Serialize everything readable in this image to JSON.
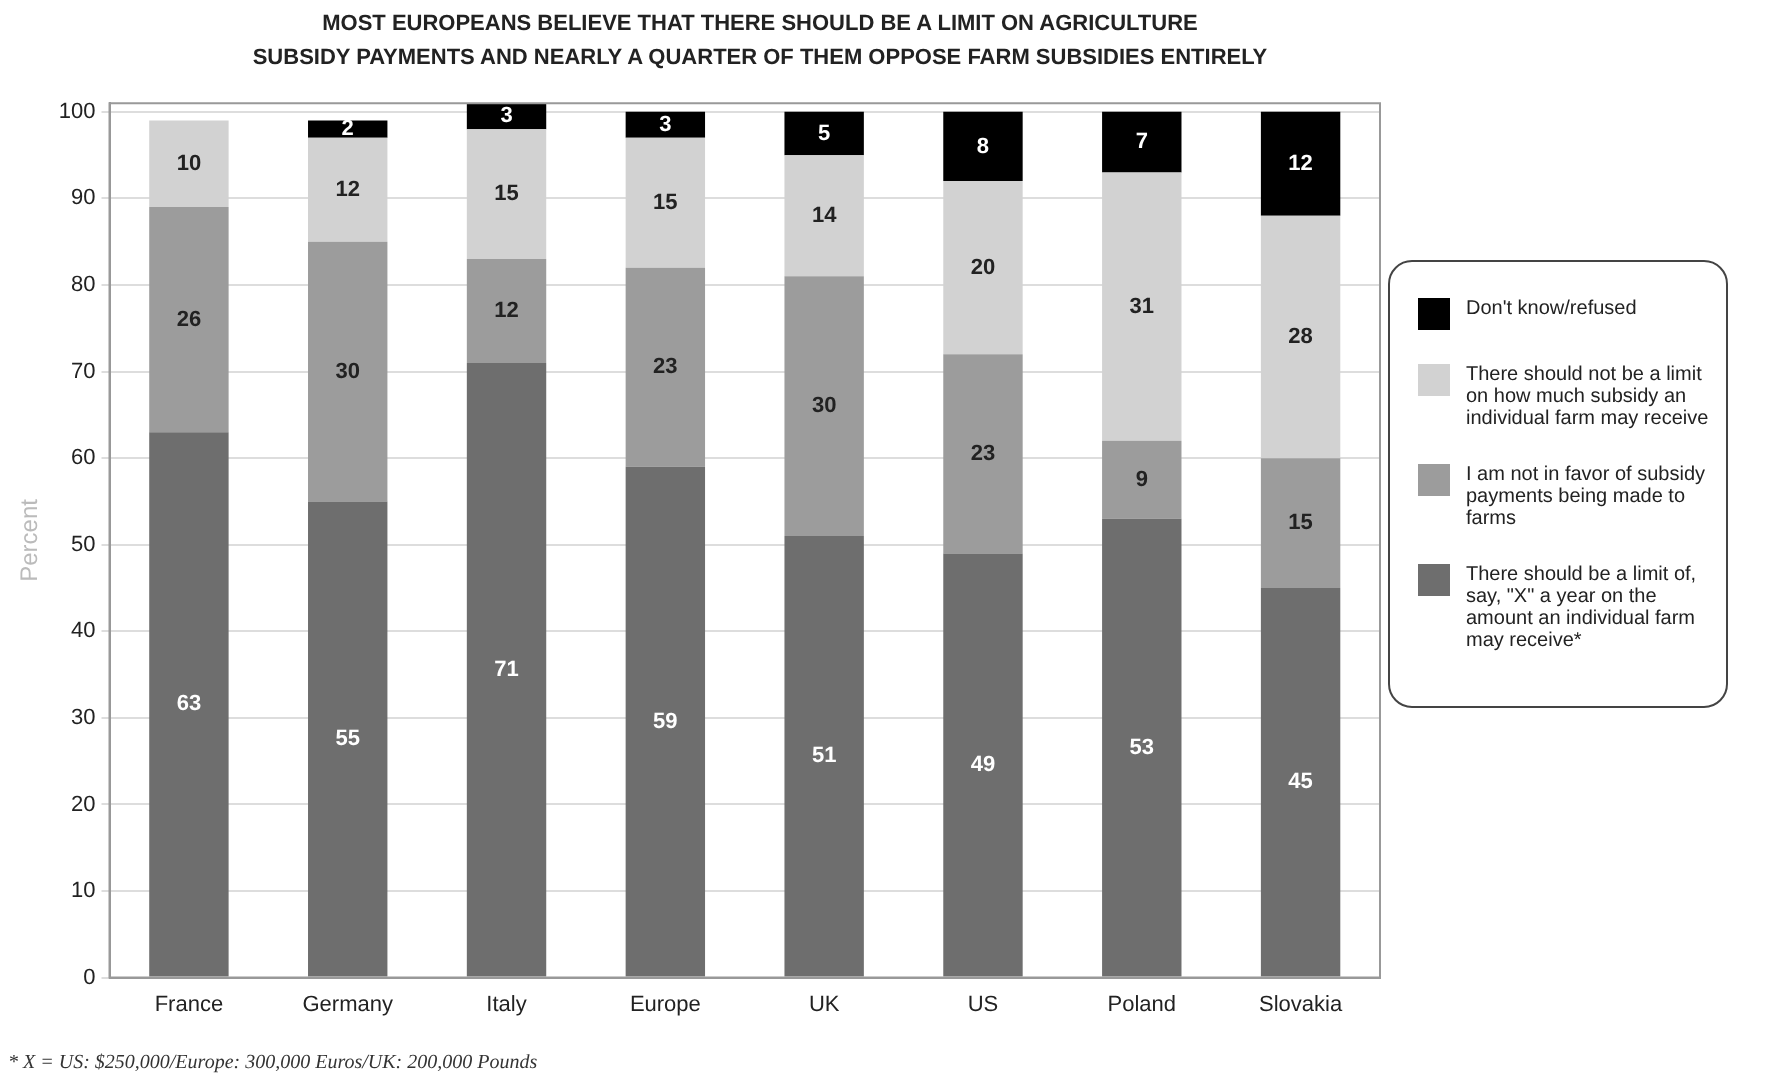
{
  "chart_data": {
    "type": "bar",
    "stacked": true,
    "title": "MOST EUROPEANS BELIEVE THAT THERE SHOULD BE A LIMIT ON AGRICULTURE\nSUBSIDY PAYMENTS AND NEARLY A QUARTER OF THEM OPPOSE FARM SUBSIDIES ENTIRELY",
    "ylabel": "Percent",
    "categories": [
      "France",
      "Germany",
      "Italy",
      "Europe",
      "UK",
      "US",
      "Poland",
      "Slovakia"
    ],
    "series": [
      {
        "name": "There should be a limit of, say, \"X\" a year on the amount an individual farm may receive*",
        "color": "#6e6e6e",
        "values": [
          63,
          55,
          71,
          59,
          51,
          49,
          53,
          45
        ]
      },
      {
        "name": "I am not in favor of subsidy payments being made to farms",
        "color": "#9c9c9c",
        "values": [
          26,
          30,
          12,
          23,
          30,
          23,
          9,
          15
        ]
      },
      {
        "name": "There should not be a limit on how much subsidy an individual farm may receive",
        "color": "#d2d2d2",
        "values": [
          10,
          12,
          15,
          15,
          14,
          20,
          31,
          28
        ]
      },
      {
        "name": "Don't know/refused",
        "color": "#000000",
        "values": [
          null,
          2,
          3,
          3,
          5,
          8,
          7,
          12
        ]
      }
    ],
    "ylim": [
      0,
      101
    ],
    "yticks": [
      0,
      10,
      20,
      30,
      40,
      50,
      60,
      70,
      80,
      90,
      100
    ],
    "grid": "y",
    "legend": "right",
    "data_labels": true,
    "annotations": [
      "* X = US: $250,000/Europe: 300,000 Euros/UK: 200,000 Pounds"
    ]
  }
}
